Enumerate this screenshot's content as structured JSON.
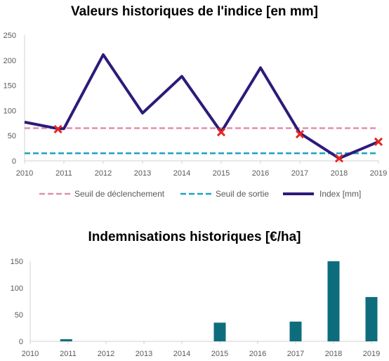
{
  "chart_data": [
    {
      "type": "line",
      "title": "Valeurs historiques de l'indice [en mm]",
      "x": [
        2010,
        2011,
        2012,
        2013,
        2014,
        2015,
        2016,
        2017,
        2018,
        2019
      ],
      "x_ticks": [
        "2010",
        "2011",
        "2012",
        "2013",
        "2014",
        "2015",
        "2016",
        "2017",
        "2018",
        "2019"
      ],
      "y_ticks": [
        "0",
        "50",
        "100",
        "150",
        "200",
        "250"
      ],
      "ylim": [
        0,
        250
      ],
      "series": [
        {
          "name": "Index [mm]",
          "color": "#2e1a7a",
          "style": "solid",
          "points": [
            [
              2010,
              77
            ],
            [
              2010.85,
              64
            ],
            [
              2011,
              64
            ],
            [
              2012,
              211
            ],
            [
              2013,
              95
            ],
            [
              2014,
              168
            ],
            [
              2015,
              57
            ],
            [
              2016,
              185
            ],
            [
              2017,
              55
            ],
            [
              2018,
              5
            ],
            [
              2019,
              38
            ]
          ]
        },
        {
          "name": "Seuil de déclenchement",
          "color": "#e08fae",
          "style": "dashed",
          "points": [
            [
              2010,
              65
            ],
            [
              2019,
              65
            ]
          ]
        },
        {
          "name": "Seuil de sortie",
          "color": "#1ba3bf",
          "style": "dashed",
          "points": [
            [
              2010,
              15
            ],
            [
              2019,
              15
            ]
          ]
        }
      ],
      "markers": {
        "symbol": "X",
        "color": "#e8261f",
        "points": [
          [
            2010.85,
            63
          ],
          [
            2015,
            57
          ],
          [
            2017,
            53
          ],
          [
            2018,
            5
          ],
          [
            2019,
            38
          ]
        ]
      },
      "legend": {
        "position": "bottom",
        "items": [
          "Seuil de déclenchement",
          "Seuil de sortie",
          "Index [mm]"
        ]
      },
      "grid": false
    },
    {
      "type": "bar",
      "title": "Indemnisations historiques [€/ha]",
      "categories": [
        "2010",
        "2011",
        "2012",
        "2013",
        "2014",
        "2015",
        "2016",
        "2017",
        "2018",
        "2019"
      ],
      "x_ticks": [
        "2010",
        "2011",
        "2012",
        "2013",
        "2014",
        "2015",
        "2016",
        "2017",
        "2018",
        "2019"
      ],
      "bars": [
        [
          2010.95,
          4
        ],
        [
          2015,
          35
        ],
        [
          2017,
          37
        ],
        [
          2018,
          150
        ],
        [
          2019,
          83
        ]
      ],
      "y_ticks": [
        "0",
        "50",
        "100",
        "150"
      ],
      "ylim": [
        0,
        150
      ],
      "color": "#0e6d7d",
      "grid": false
    }
  ]
}
